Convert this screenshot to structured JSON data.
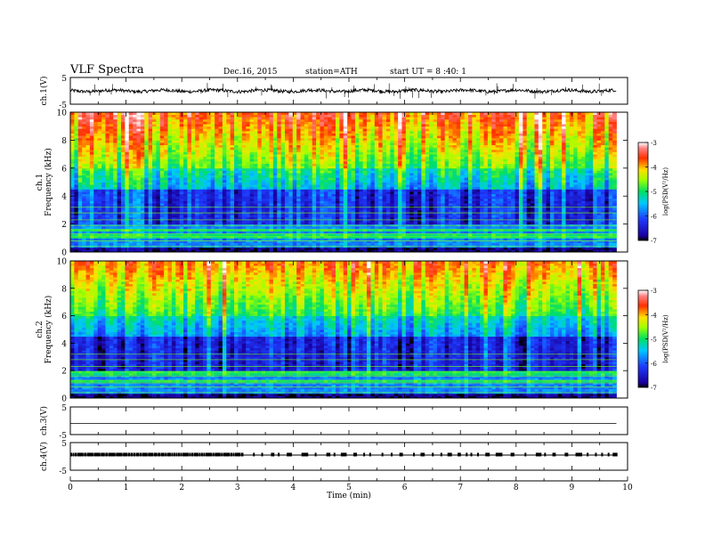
{
  "header": {
    "title": "VLF  Spectra",
    "date": "Dec.16, 2015",
    "station": "station=ATH",
    "start": "start  UT =  8 :40: 1"
  },
  "chart_data": [
    {
      "type": "line",
      "panel": "ch1-waveform",
      "ylabel": "ch.1(V)",
      "yticks": [
        "5",
        "-5"
      ],
      "ylim": [
        -5,
        5
      ],
      "description_values": "noisy waveform near 0 V across 0–9.8 min"
    },
    {
      "type": "heatmap",
      "panel": "ch1-spectrogram",
      "ylabel_top": "ch.1",
      "ylabel": "Frequency  (kHz)",
      "yticks": [
        "0",
        "2",
        "4",
        "6",
        "8",
        "10"
      ],
      "ylim": [
        0,
        10
      ],
      "colorbar_label": "log(PSD(V²/Hz)",
      "colorbar_ticks": [
        "-3",
        "-4",
        "-5",
        "-6",
        "-7"
      ],
      "clim": [
        -7,
        -3
      ]
    },
    {
      "type": "heatmap",
      "panel": "ch2-spectrogram",
      "ylabel_top": "ch.2",
      "ylabel": "Frequency  (kHz)",
      "yticks": [
        "0",
        "2",
        "4",
        "6",
        "8",
        "10"
      ],
      "ylim": [
        0,
        10
      ],
      "colorbar_label": "log(PSD(V²/Hz)",
      "colorbar_ticks": [
        "-3",
        "-4",
        "-5",
        "-6",
        "-7"
      ],
      "clim": [
        -7,
        -3
      ]
    },
    {
      "type": "line",
      "panel": "ch3-waveform",
      "ylabel": "ch.3(V)",
      "yticks": [
        "5",
        "-5"
      ],
      "ylim": [
        -5,
        5
      ]
    },
    {
      "type": "line",
      "panel": "ch4-waveform",
      "ylabel": "ch.4(V)",
      "yticks": [
        "5",
        "-5"
      ],
      "ylim": [
        -5,
        5
      ]
    }
  ],
  "xaxis": {
    "label": "Time  (min)",
    "ticks": [
      "0",
      "1",
      "2",
      "3",
      "4",
      "5",
      "6",
      "7",
      "8",
      "9",
      "10"
    ],
    "xlim": [
      0,
      10
    ]
  }
}
